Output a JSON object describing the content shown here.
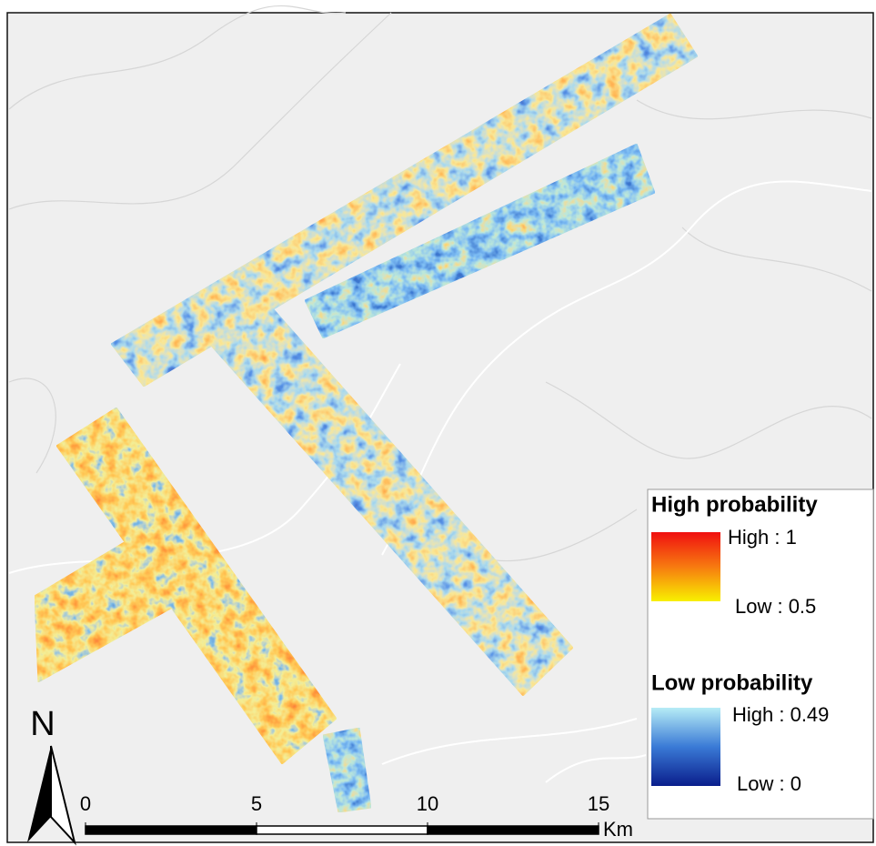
{
  "north_arrow": {
    "label": "N"
  },
  "legend": {
    "groups": [
      {
        "title": "High probability",
        "high": "High : 1",
        "low": "Low : 0.5"
      },
      {
        "title": "Low probability",
        "high": "High : 0.49",
        "low": "Low : 0"
      }
    ]
  },
  "scale_bar": {
    "ticks": [
      0,
      5,
      10,
      15
    ],
    "unit": "Km"
  }
}
